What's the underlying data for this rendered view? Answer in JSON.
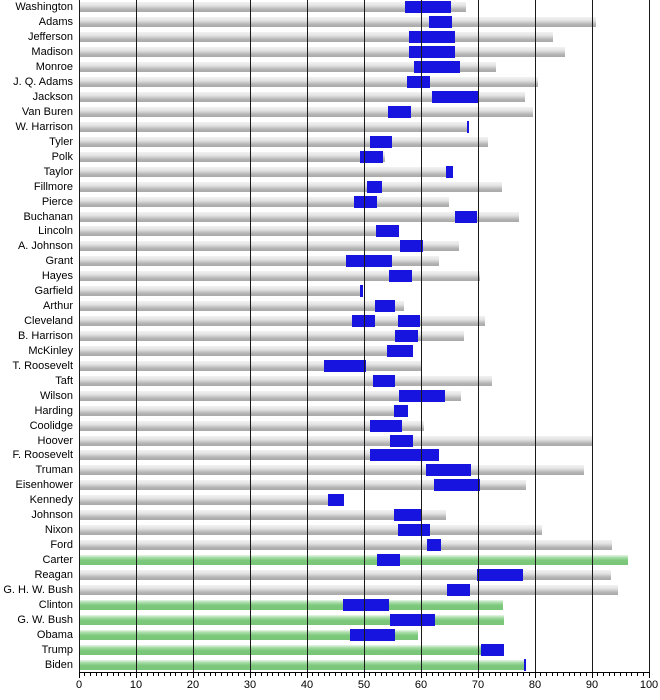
{
  "chart_data": {
    "type": "bar",
    "title": "",
    "encoding": {
      "bar_meaning": "age in years (gray = deceased lifespan, green = living, current age)",
      "segment_meaning": "age range while serving as president (blue)"
    },
    "x_axis": {
      "min": 0,
      "max": 100,
      "major_tick_step": 10,
      "minor_tick_step": 1,
      "tick_labels": [
        "0",
        "10",
        "20",
        "30",
        "40",
        "50",
        "60",
        "70",
        "80",
        "90",
        "100"
      ],
      "gridlines_at": [
        0,
        10,
        20,
        30,
        40,
        50,
        60,
        70,
        80,
        90,
        100
      ]
    },
    "colors": {
      "term_segment": "#1714e0",
      "deceased_bar": "#b3b3b3",
      "living_bar": "#7cc87c",
      "gridline": "#1a1a1a",
      "text": "#000000",
      "background": "#ffffff"
    },
    "presidents": [
      {
        "name": "Washington",
        "terms": [
          [
            57.2,
            65.2
          ]
        ],
        "age": 67.9,
        "living": false
      },
      {
        "name": "Adams",
        "terms": [
          [
            61.4,
            65.4
          ]
        ],
        "age": 90.7,
        "living": false
      },
      {
        "name": "Jefferson",
        "terms": [
          [
            57.9,
            65.9
          ]
        ],
        "age": 83.2,
        "living": false
      },
      {
        "name": "Madison",
        "terms": [
          [
            57.9,
            65.9
          ]
        ],
        "age": 85.3,
        "living": false
      },
      {
        "name": "Monroe",
        "terms": [
          [
            58.8,
            66.8
          ]
        ],
        "age": 73.2,
        "living": false
      },
      {
        "name": "J. Q. Adams",
        "terms": [
          [
            57.6,
            61.6
          ]
        ],
        "age": 80.6,
        "living": false
      },
      {
        "name": "Jackson",
        "terms": [
          [
            62.0,
            70.0
          ]
        ],
        "age": 78.2,
        "living": false
      },
      {
        "name": "Van Buren",
        "terms": [
          [
            54.2,
            58.2
          ]
        ],
        "age": 79.6,
        "living": false
      },
      {
        "name": "W. Harrison",
        "terms": [
          [
            68.0,
            68.2
          ]
        ],
        "age": 68.2,
        "living": false
      },
      {
        "name": "Tyler",
        "terms": [
          [
            51.0,
            55.0
          ]
        ],
        "age": 71.8,
        "living": false
      },
      {
        "name": "Polk",
        "terms": [
          [
            49.3,
            53.3
          ]
        ],
        "age": 53.6,
        "living": false
      },
      {
        "name": "Taylor",
        "terms": [
          [
            64.3,
            65.6
          ]
        ],
        "age": 65.6,
        "living": false
      },
      {
        "name": "Fillmore",
        "terms": [
          [
            50.5,
            53.2
          ]
        ],
        "age": 74.2,
        "living": false
      },
      {
        "name": "Pierce",
        "terms": [
          [
            48.3,
            52.3
          ]
        ],
        "age": 64.9,
        "living": false
      },
      {
        "name": "Buchanan",
        "terms": [
          [
            65.9,
            69.9
          ]
        ],
        "age": 77.2,
        "living": false
      },
      {
        "name": "Lincoln",
        "terms": [
          [
            52.1,
            56.2
          ]
        ],
        "age": 56.2,
        "living": false
      },
      {
        "name": "A. Johnson",
        "terms": [
          [
            56.3,
            60.3
          ]
        ],
        "age": 66.6,
        "living": false
      },
      {
        "name": "Grant",
        "terms": [
          [
            46.9,
            54.9
          ]
        ],
        "age": 63.2,
        "living": false
      },
      {
        "name": "Hayes",
        "terms": [
          [
            54.4,
            58.4
          ]
        ],
        "age": 70.3,
        "living": false
      },
      {
        "name": "Garfield",
        "terms": [
          [
            49.3,
            49.9
          ]
        ],
        "age": 49.9,
        "living": false
      },
      {
        "name": "Arthur",
        "terms": [
          [
            51.9,
            55.4
          ]
        ],
        "age": 57.1,
        "living": false
      },
      {
        "name": "Cleveland",
        "terms": [
          [
            47.9,
            51.9
          ],
          [
            55.9,
            59.9
          ]
        ],
        "age": 71.3,
        "living": false
      },
      {
        "name": "B. Harrison",
        "terms": [
          [
            55.5,
            59.5
          ]
        ],
        "age": 67.6,
        "living": false
      },
      {
        "name": "McKinley",
        "terms": [
          [
            54.1,
            58.6
          ]
        ],
        "age": 58.6,
        "living": false
      },
      {
        "name": "T. Roosevelt",
        "terms": [
          [
            42.9,
            50.4
          ]
        ],
        "age": 60.2,
        "living": false
      },
      {
        "name": "Taft",
        "terms": [
          [
            51.5,
            55.5
          ]
        ],
        "age": 72.5,
        "living": false
      },
      {
        "name": "Wilson",
        "terms": [
          [
            56.2,
            64.2
          ]
        ],
        "age": 67.1,
        "living": false
      },
      {
        "name": "Harding",
        "terms": [
          [
            55.3,
            57.8
          ]
        ],
        "age": 57.8,
        "living": false
      },
      {
        "name": "Coolidge",
        "terms": [
          [
            51.1,
            56.6
          ]
        ],
        "age": 60.5,
        "living": false
      },
      {
        "name": "Hoover",
        "terms": [
          [
            54.6,
            58.6
          ]
        ],
        "age": 90.2,
        "living": false
      },
      {
        "name": "F. Roosevelt",
        "terms": [
          [
            51.1,
            63.2
          ]
        ],
        "age": 63.2,
        "living": false
      },
      {
        "name": "Truman",
        "terms": [
          [
            60.9,
            68.7
          ]
        ],
        "age": 88.6,
        "living": false
      },
      {
        "name": "Eisenhower",
        "terms": [
          [
            62.3,
            70.3
          ]
        ],
        "age": 78.5,
        "living": false
      },
      {
        "name": "Kennedy",
        "terms": [
          [
            43.6,
            46.5
          ]
        ],
        "age": 46.5,
        "living": false
      },
      {
        "name": "Johnson",
        "terms": [
          [
            55.2,
            60.2
          ]
        ],
        "age": 64.4,
        "living": false
      },
      {
        "name": "Nixon",
        "terms": [
          [
            56.0,
            61.5
          ]
        ],
        "age": 81.3,
        "living": false
      },
      {
        "name": "Ford",
        "terms": [
          [
            61.1,
            63.5
          ]
        ],
        "age": 93.5,
        "living": false
      },
      {
        "name": "Carter",
        "terms": [
          [
            52.3,
            56.3
          ]
        ],
        "age": 96.3,
        "living": true
      },
      {
        "name": "Reagan",
        "terms": [
          [
            69.9,
            77.9
          ]
        ],
        "age": 93.3,
        "living": false
      },
      {
        "name": "G. H. W. Bush",
        "terms": [
          [
            64.6,
            68.6
          ]
        ],
        "age": 94.5,
        "living": false
      },
      {
        "name": "Clinton",
        "terms": [
          [
            46.4,
            54.4
          ]
        ],
        "age": 74.4,
        "living": true
      },
      {
        "name": "G. W. Bush",
        "terms": [
          [
            54.5,
            62.5
          ]
        ],
        "age": 74.5,
        "living": true
      },
      {
        "name": "Obama",
        "terms": [
          [
            47.5,
            55.5
          ]
        ],
        "age": 59.5,
        "living": true
      },
      {
        "name": "Trump",
        "terms": [
          [
            70.6,
            74.6
          ]
        ],
        "age": 74.6,
        "living": true
      },
      {
        "name": "Biden",
        "terms": [
          [
            78.1,
            78.3
          ]
        ],
        "age": 78.3,
        "living": true
      }
    ]
  }
}
